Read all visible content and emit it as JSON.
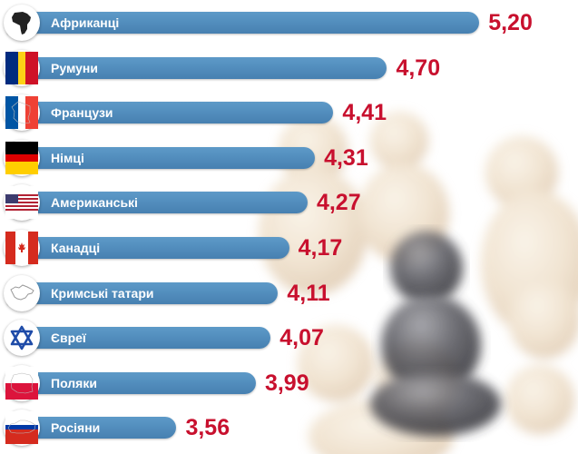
{
  "chart_data": {
    "type": "bar",
    "orientation": "horizontal",
    "categories": [
      "Африканці",
      "Румуни",
      "Французи",
      "Німці",
      "Американські",
      "Канадці",
      "Кримські татари",
      "Євреї",
      "Поляки",
      "Росіяни"
    ],
    "values": [
      5.2,
      4.7,
      4.41,
      4.31,
      4.27,
      4.17,
      4.11,
      4.07,
      3.99,
      3.56
    ],
    "value_labels": [
      "5,20",
      "4,70",
      "4,41",
      "4,31",
      "4,27",
      "4,17",
      "4,11",
      "4,07",
      "3,99",
      "3,56"
    ],
    "icons": [
      "africa-icon",
      "romania-flag-icon",
      "france-flag-icon",
      "germany-flag-icon",
      "usa-flag-icon",
      "canada-flag-icon",
      "crimea-map-icon",
      "star-of-david-icon",
      "poland-flag-icon",
      "russia-flag-icon"
    ],
    "grid": false,
    "legend": "none",
    "colors": {
      "bar": "#4f8bbd",
      "value": "#c8102e",
      "label": "#ffffff"
    }
  }
}
